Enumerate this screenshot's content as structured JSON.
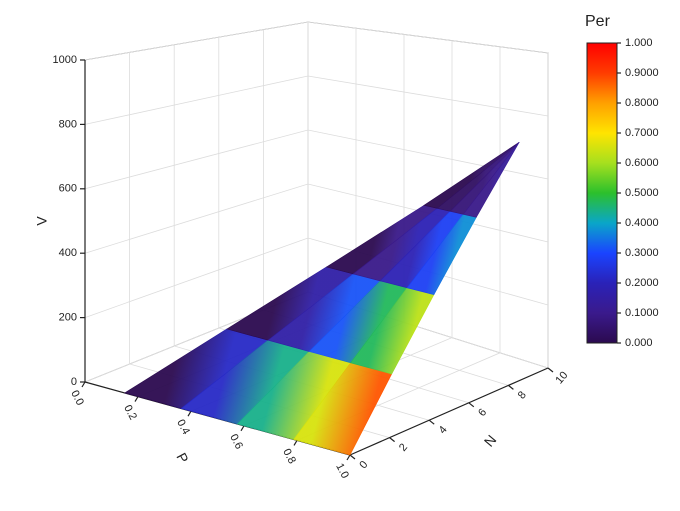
{
  "chart_data": {
    "type": "surface3d",
    "xlabel": "P",
    "ylabel": "N",
    "zlabel": "V",
    "colorbar_title": "Per",
    "xlim": [
      0,
      1
    ],
    "ylim": [
      0,
      10
    ],
    "zlim": [
      0,
      1000
    ],
    "xticks": [
      {
        "value": 0,
        "label": "0.0"
      },
      {
        "value": 0.2,
        "label": "0.2"
      },
      {
        "value": 0.4,
        "label": "0.4"
      },
      {
        "value": 0.6,
        "label": "0.6"
      },
      {
        "value": 0.8,
        "label": "0.8"
      },
      {
        "value": 1,
        "label": "1.0"
      }
    ],
    "yticks": [
      0,
      2,
      4,
      6,
      8,
      10
    ],
    "zticks": [
      0,
      200,
      400,
      600,
      800,
      1000
    ],
    "grid": true,
    "colorbar_lim": [
      0,
      1
    ],
    "colorbar_ticks": [
      {
        "value": 0,
        "label": "0.000"
      },
      {
        "value": 0.1,
        "label": "0.1000"
      },
      {
        "value": 0.2,
        "label": "0.2000"
      },
      {
        "value": 0.3,
        "label": "0.3000"
      },
      {
        "value": 0.4,
        "label": "0.4000"
      },
      {
        "value": 0.5,
        "label": "0.5000"
      },
      {
        "value": 0.6,
        "label": "0.6000"
      },
      {
        "value": 0.7,
        "label": "0.7000"
      },
      {
        "value": 0.8,
        "label": "0.8000"
      },
      {
        "value": 0.9,
        "label": "0.9000"
      },
      {
        "value": 1,
        "label": "1.000"
      }
    ],
    "colormap": [
      "#2b0a4f",
      "#3a1a8c",
      "#2a22b8",
      "#1a44ff",
      "#0aa6c8",
      "#2cc02c",
      "#a6e01e",
      "#ffe400",
      "#ffa000",
      "#ff3c00",
      "#ff0000"
    ],
    "surface": {
      "n": [
        0,
        2.5,
        5,
        7.5,
        10
      ],
      "v": [
        0,
        175,
        350,
        525,
        700
      ],
      "p": [
        [
          0.15,
          0.363,
          0.575,
          0.788,
          1
        ],
        [
          0.333,
          0.492,
          0.651,
          0.811,
          0.97
        ],
        [
          0.515,
          0.621,
          0.728,
          0.834,
          0.94
        ],
        [
          0.698,
          0.751,
          0.804,
          0.857,
          0.91
        ],
        [
          0.88,
          0.88,
          0.88,
          0.88,
          0.88
        ]
      ],
      "per": [
        [
          0,
          0.25,
          0.5,
          0.75,
          1
        ],
        [
          0,
          0.19,
          0.38,
          0.56,
          0.75
        ],
        [
          0,
          0.13,
          0.25,
          0.38,
          0.5
        ],
        [
          0,
          0.06,
          0.13,
          0.19,
          0.25
        ],
        [
          0,
          0,
          0,
          0,
          0
        ]
      ]
    }
  }
}
